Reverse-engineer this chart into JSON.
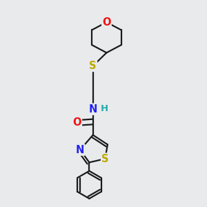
{
  "background_color": "#e8eaec",
  "bond_color": "#1a1a1a",
  "atom_colors": {
    "O": "#ee1111",
    "S": "#bbaa00",
    "N": "#2222ee",
    "H": "#22aaaa",
    "C": "#1a1a1a"
  },
  "bond_width": 1.6,
  "font_size_atoms": 9.5,
  "figsize": [
    3.0,
    3.0
  ],
  "dpi": 100
}
